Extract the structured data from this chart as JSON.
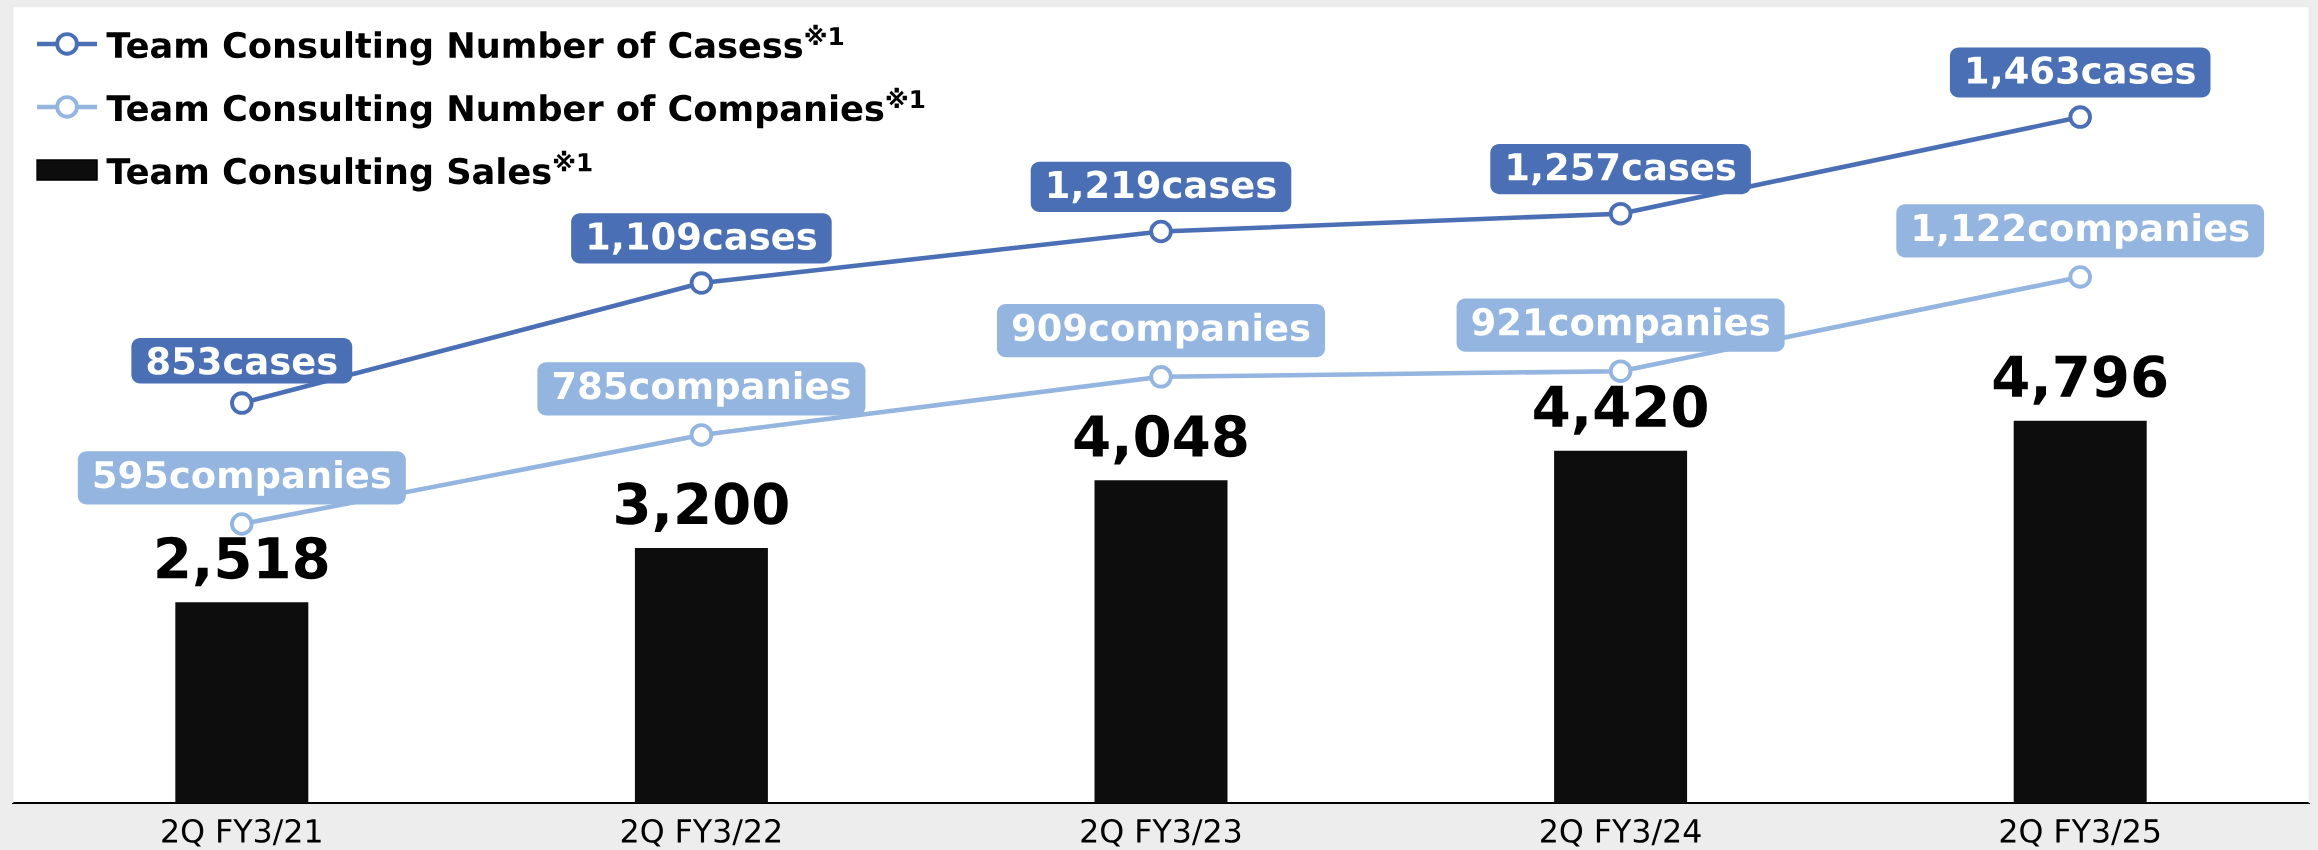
{
  "chart_data": {
    "type": "bar",
    "legend": "top left",
    "ylim": [
      0,
      10000
    ],
    "y2lim": [
      0,
      1700
    ],
    "categories": [
      "2Q FY3/21",
      "2Q FY3/22",
      "2Q FY3/23",
      "2Q FY3/24",
      "2Q FY3/25"
    ],
    "series": [
      {
        "name": "Team Consulting Number of Casess$^{※1}$",
        "type": "line",
        "axis": "y2",
        "marker": "circle",
        "color": "#4a6fb5",
        "values": [
          853,
          1109,
          1219,
          1257,
          1463
        ],
        "value_labels": [
          "853cases",
          "1,109cases",
          "1,219cases",
          "1,257cases",
          "1,463cases"
        ]
      },
      {
        "name": "Team Consulting Number of Companies$^{※1}$",
        "type": "line",
        "axis": "y2",
        "marker": "circle",
        "color": "#93b5e0",
        "values": [
          595,
          785,
          909,
          921,
          1122
        ],
        "value_labels": [
          "595companies",
          "785companies",
          "909companies",
          "921companies",
          "1,122companies"
        ]
      },
      {
        "name": "Team Consulting Sales$^{※1}$",
        "color": "#0d0d0d",
        "values": [
          2518,
          3200,
          4048,
          4420,
          4796
        ],
        "value_labels": [
          "2,518",
          "3,200",
          "4,048",
          "4,420",
          "4,796"
        ]
      }
    ]
  }
}
